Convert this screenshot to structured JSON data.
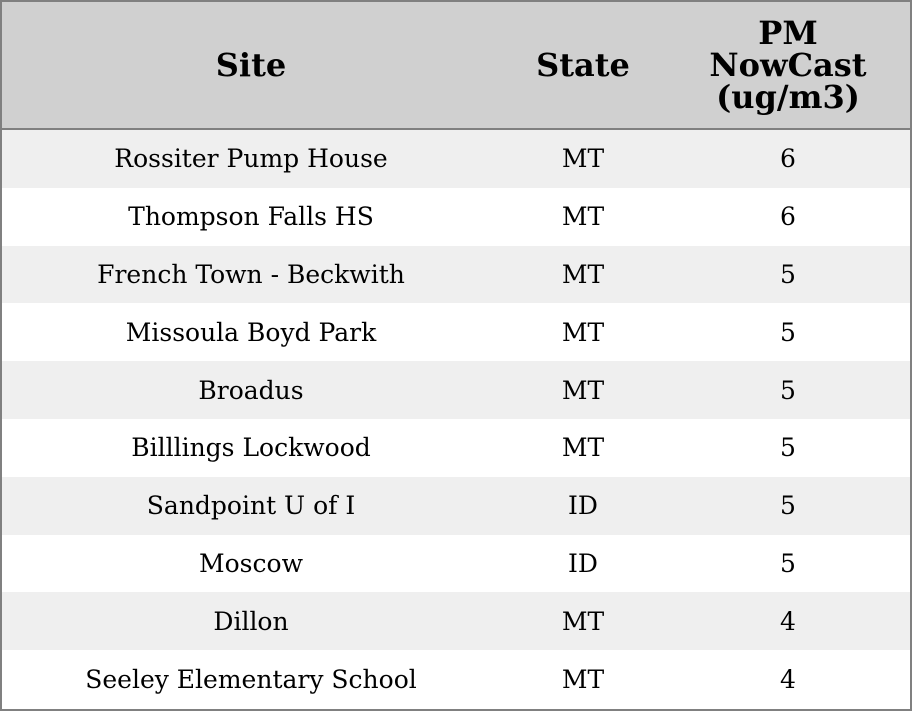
{
  "table": {
    "headers": [
      "Site",
      "State",
      "PM NowCast (ug/m3)"
    ],
    "header_lines": {
      "pm": [
        "PM",
        "NowCast",
        "(ug/m3)"
      ]
    },
    "rows": [
      {
        "site": "Rossiter Pump House",
        "state": "MT",
        "pm": "6"
      },
      {
        "site": "Thompson Falls HS",
        "state": "MT",
        "pm": "6"
      },
      {
        "site": "French Town - Beckwith",
        "state": "MT",
        "pm": "5"
      },
      {
        "site": "Missoula Boyd Park",
        "state": "MT",
        "pm": "5"
      },
      {
        "site": "Broadus",
        "state": "MT",
        "pm": "5"
      },
      {
        "site": "Billlings Lockwood",
        "state": "MT",
        "pm": "5"
      },
      {
        "site": "Sandpoint U of I",
        "state": "ID",
        "pm": "5"
      },
      {
        "site": "Moscow",
        "state": "ID",
        "pm": "5"
      },
      {
        "site": "Dillon",
        "state": "MT",
        "pm": "4"
      },
      {
        "site": "Seeley Elementary School",
        "state": "MT",
        "pm": "4"
      }
    ],
    "colors": {
      "header_bg": "#d0d0d0",
      "row_alt_bg": "#efefef",
      "border": "#808080"
    }
  }
}
